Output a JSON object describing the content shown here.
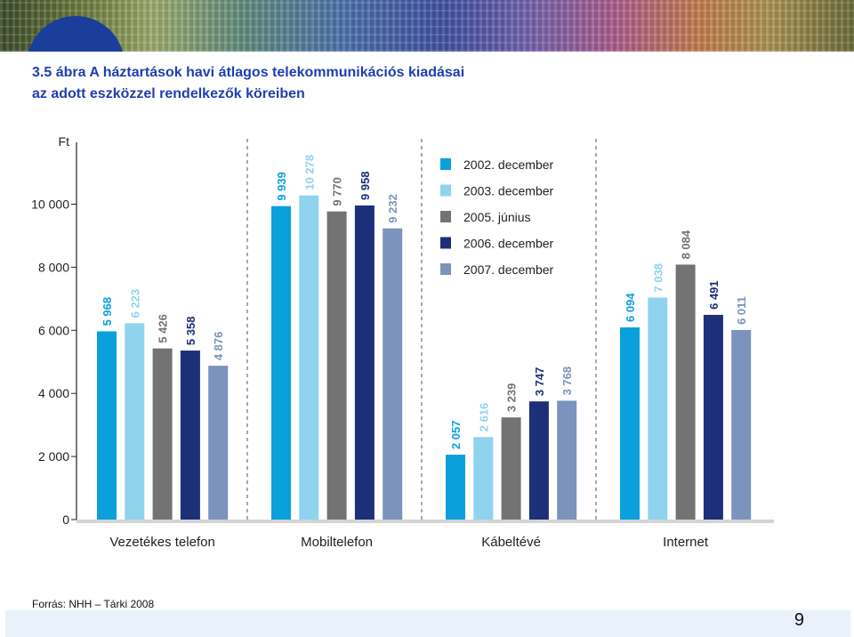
{
  "title": {
    "line1": "3.5 ábra  A háztartások havi átlagos telekommunikációs kiadásai",
    "line2": "az adott eszközzel rendelkezők köreiben"
  },
  "source": "Forrás: NHH – Tárki 2008",
  "page_number": "9",
  "chart_data": {
    "type": "bar",
    "title": "3.5 ábra  A háztartások havi átlagos telekommunikációs kiadásai az adott eszközzel rendelkezők köreiben",
    "ylabel": "Ft",
    "xlabel": "",
    "ylim": [
      0,
      11500
    ],
    "yticks": [
      0,
      2000,
      4000,
      6000,
      8000,
      10000
    ],
    "ytick_labels": [
      "0",
      "2 000",
      "4 000",
      "6 000",
      "8 000",
      "10 000"
    ],
    "categories": [
      "Vezetékes telefon",
      "Mobiltelefon",
      "Kábeltévé",
      "Internet"
    ],
    "legend_position": "top-center",
    "series": [
      {
        "name": "2002. december",
        "color": "#0aa0dc",
        "label_color": "#0aa0dc",
        "values": [
          5968,
          9939,
          2057,
          6094
        ],
        "labels": [
          "5 968",
          "9 939",
          "2 057",
          "6 094"
        ]
      },
      {
        "name": "2003. december",
        "color": "#8fd3ef",
        "label_color": "#8fd3ef",
        "values": [
          6223,
          10278,
          2616,
          7038
        ],
        "labels": [
          "6 223",
          "10 278",
          "2 616",
          "7 038"
        ]
      },
      {
        "name": "2005. június",
        "color": "#737373",
        "label_color": "#737373",
        "values": [
          5426,
          9770,
          3239,
          8084
        ],
        "labels": [
          "5 426",
          "9 770",
          "3 239",
          "8 084"
        ]
      },
      {
        "name": "2006. december",
        "color": "#1d2f78",
        "label_color": "#1d2f78",
        "values": [
          5358,
          9958,
          3747,
          6491
        ],
        "labels": [
          "5 358",
          "9 958",
          "3 747",
          "6 491"
        ]
      },
      {
        "name": "2007. december",
        "color": "#7b93bd",
        "label_color": "#7b93bd",
        "values": [
          4876,
          9232,
          3768,
          6011
        ],
        "labels": [
          "4 876",
          "9 232",
          "3 768",
          "6 011"
        ]
      }
    ]
  }
}
